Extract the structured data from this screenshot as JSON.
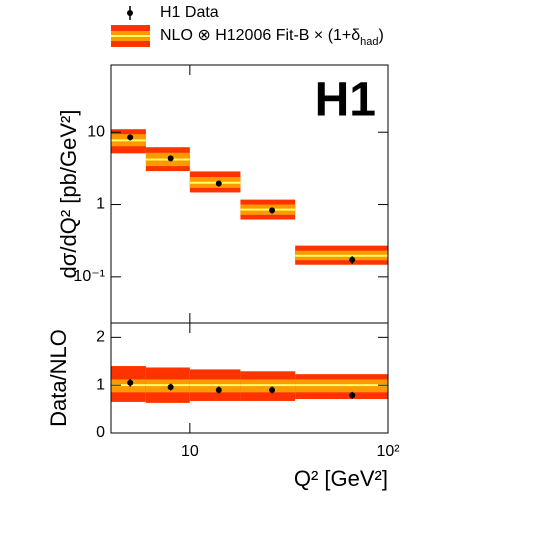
{
  "chart_data": [
    {
      "type": "band_errorbar",
      "title": "H1",
      "ylabel": "dσ/dQ² [pb/GeV²]",
      "log_x": true,
      "log_y": true,
      "xlim": [
        4,
        100
      ],
      "ylim": [
        0.023,
        85
      ],
      "yticks": [
        {
          "value": 10,
          "label": "10"
        },
        1,
        {
          "value": 0.1,
          "label": "10⁻¹"
        }
      ],
      "bins": [
        4,
        6,
        10,
        18,
        34,
        100
      ],
      "x": [
        5,
        8,
        14,
        26,
        66
      ],
      "series": [
        {
          "name": "H1 Data",
          "color": "#000000",
          "values": [
            8.5,
            4.35,
            1.95,
            0.83,
            0.172
          ],
          "errors": [
            0.8,
            0.4,
            0.18,
            0.08,
            0.02
          ]
        },
        {
          "name": "NLO ⊗ H12006 Fit-B × (1+δ",
          "name_sub": "had",
          "name_end": ")",
          "color": "#ffff66",
          "inner_color": "#ff9900",
          "outer_color": "#ff3300",
          "values": [
            7.7,
            4.2,
            2.0,
            0.85,
            0.196
          ],
          "inner_low": [
            6.4,
            3.4,
            1.7,
            0.72,
            0.17
          ],
          "inner_high": [
            9.4,
            5.2,
            2.4,
            1.0,
            0.23
          ],
          "outer_low": [
            5.1,
            2.9,
            1.47,
            0.62,
            0.147
          ],
          "outer_high": [
            11,
            6.2,
            2.87,
            1.17,
            0.27
          ]
        }
      ]
    },
    {
      "type": "band_errorbar",
      "ylabel": "Data/NLO",
      "xlabel": "Q² [GeV²]",
      "log_x": true,
      "log_y": false,
      "xlim": [
        4,
        100
      ],
      "ylim": [
        0,
        2.3
      ],
      "xticks": [
        10,
        {
          "value": 100,
          "label": "10²"
        }
      ],
      "yticks": [
        0,
        1,
        2
      ],
      "series": [
        {
          "name": "H1 Data",
          "color": "#000000",
          "values": [
            1.05,
            0.96,
            0.9,
            0.9,
            0.79
          ],
          "errors": [
            0.08,
            0.07,
            0.07,
            0.07,
            0.07
          ]
        },
        {
          "name": "NLO ⊗ H12006 Fit-B × (1+δ",
          "color": "#ffff66",
          "inner_color": "#ff9900",
          "outer_color": "#ff3300",
          "values": [
            1,
            1,
            1,
            1,
            1
          ],
          "inner_low": [
            0.85,
            0.85,
            0.85,
            0.85,
            0.85
          ],
          "inner_high": [
            1.12,
            1.12,
            1.12,
            1.12,
            1.12
          ],
          "outer_low": [
            0.65,
            0.63,
            0.67,
            0.67,
            0.71
          ],
          "outer_high": [
            1.4,
            1.37,
            1.33,
            1.29,
            1.23
          ]
        }
      ]
    }
  ]
}
